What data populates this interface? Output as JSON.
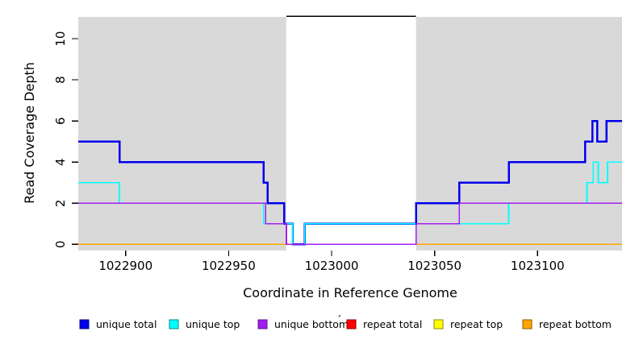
{
  "chart_data": {
    "type": "line",
    "subtype": "step-coverage",
    "title": "",
    "xlabel": "Coordinate in Reference Genome",
    "ylabel": "Read Coverage Depth",
    "xlim": [
      1022877,
      1023141
    ],
    "ylim": [
      -0.3,
      11.1
    ],
    "x_ticks": [
      1022900,
      1022950,
      1023000,
      1023050,
      1023100
    ],
    "y_ticks": [
      0,
      2,
      4,
      6,
      8,
      10
    ],
    "grid": false,
    "plot_background": "#ffffff",
    "band_color": "#d9d9d9",
    "background_bands": [
      {
        "name": "unique-region-left",
        "x1": 1022877,
        "x2": 1022978,
        "color": "#d9d9d9"
      },
      {
        "name": "repeat-region",
        "x1": 1022978,
        "x2": 1023041,
        "color": "#ffffff"
      },
      {
        "name": "unique-region-right",
        "x1": 1023041,
        "x2": 1023141,
        "color": "#d9d9d9"
      }
    ],
    "repeat_region_marker": {
      "x1": 1022978,
      "x2": 1023041,
      "y": 11.1,
      "color": "#000000"
    },
    "series": [
      {
        "name": "repeat total",
        "color": "#ff0000",
        "width": 1.5,
        "steps": [
          [
            1022877,
            0
          ]
        ],
        "end": 1023141
      },
      {
        "name": "repeat top",
        "color": "#ffff00",
        "width": 1.5,
        "steps": [
          [
            1022877,
            0
          ]
        ],
        "end": 1023141
      },
      {
        "name": "repeat bottom",
        "color": "#ffa500",
        "width": 1.8,
        "steps": [
          [
            1022877,
            0
          ]
        ],
        "end": 1023141
      },
      {
        "name": "unique total",
        "color": "#0000ee",
        "width": 2.5,
        "steps": [
          [
            1022877,
            5
          ],
          [
            1022897,
            4
          ],
          [
            1022967,
            3
          ],
          [
            1022969,
            2
          ],
          [
            1022977,
            1
          ],
          [
            1022981,
            0
          ],
          [
            1022987,
            1
          ],
          [
            1023041,
            2
          ],
          [
            1023062,
            3
          ],
          [
            1023086,
            4
          ],
          [
            1023123,
            5
          ],
          [
            1023126.5,
            6
          ],
          [
            1023129,
            5
          ],
          [
            1023133.5,
            6
          ]
        ],
        "end": 1023141
      },
      {
        "name": "unique top",
        "color": "#00ffff",
        "width": 1.8,
        "steps": [
          [
            1022877,
            3
          ],
          [
            1022897,
            2
          ],
          [
            1022967,
            1
          ],
          [
            1022981,
            0
          ],
          [
            1022987,
            1
          ],
          [
            1023086,
            2
          ],
          [
            1023124,
            3
          ],
          [
            1023127,
            4
          ],
          [
            1023129.5,
            3
          ],
          [
            1023134,
            4
          ]
        ],
        "end": 1023141
      },
      {
        "name": "unique bottom",
        "color": "#a020f0",
        "width": 1.8,
        "steps": [
          [
            1022877,
            2
          ],
          [
            1022968,
            1
          ],
          [
            1022978,
            0
          ],
          [
            1023041,
            1
          ],
          [
            1023062,
            2
          ]
        ],
        "end": 1023141
      }
    ],
    "legend_position": "bottom",
    "legend": [
      {
        "label": "unique total",
        "fill": "#0000ee",
        "border": "#000080"
      },
      {
        "label": "unique top",
        "fill": "#00ffff",
        "border": "#008b8b"
      },
      {
        "label": "unique bottom",
        "fill": "#a020f0",
        "border": "#5d1a8b"
      },
      {
        "label": "repeat total",
        "fill": "#ff0000",
        "border": "#800000"
      },
      {
        "label": "repeat top",
        "fill": "#ffff00",
        "border": "#8b8b00"
      },
      {
        "label": "repeat bottom",
        "fill": "#ffa500",
        "border": "#8b5a00"
      }
    ],
    "stray_mark": "´"
  }
}
